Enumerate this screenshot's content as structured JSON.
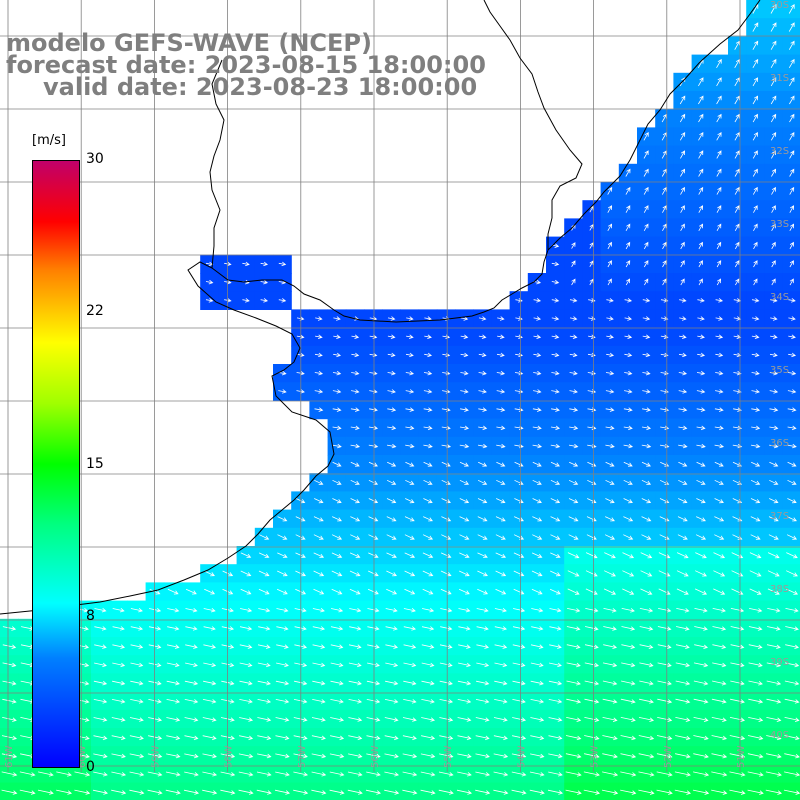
{
  "title": {
    "line1": "modelo GEFS-WAVE (NCEP)",
    "line2": "forecast date: 2023-08-15 18:00:00",
    "line3": "valid date: 2023-08-23 18:00:00"
  },
  "colorbar": {
    "unit": "[m/s]",
    "ticks": [
      "30",
      "22",
      "15",
      "8",
      "0"
    ],
    "tick_values": [
      30,
      22,
      15,
      8,
      0
    ],
    "min": 0,
    "max": 30,
    "colors": [
      "#0000ff",
      "#0080ff",
      "#00ffff",
      "#00ff80",
      "#00ff00",
      "#a0ff00",
      "#ffff00",
      "#ff8000",
      "#ff0000",
      "#c0006a"
    ]
  },
  "map": {
    "grid": true,
    "lat_labels": [
      "30S",
      "31S",
      "32S",
      "33S",
      "34S",
      "35S",
      "36S",
      "37S",
      "38S",
      "39S",
      "40S",
      "41S"
    ],
    "lon_labels": [
      "61W",
      "60W",
      "59W",
      "58W",
      "57W",
      "56W",
      "55W",
      "54W",
      "53W",
      "52W",
      "51W",
      "50W"
    ],
    "land_color": "#ffffff",
    "grid_color": "#808080",
    "arrow_color": "#ffffff",
    "wind_field": "wind speed (m/s) and direction, ocean only"
  }
}
